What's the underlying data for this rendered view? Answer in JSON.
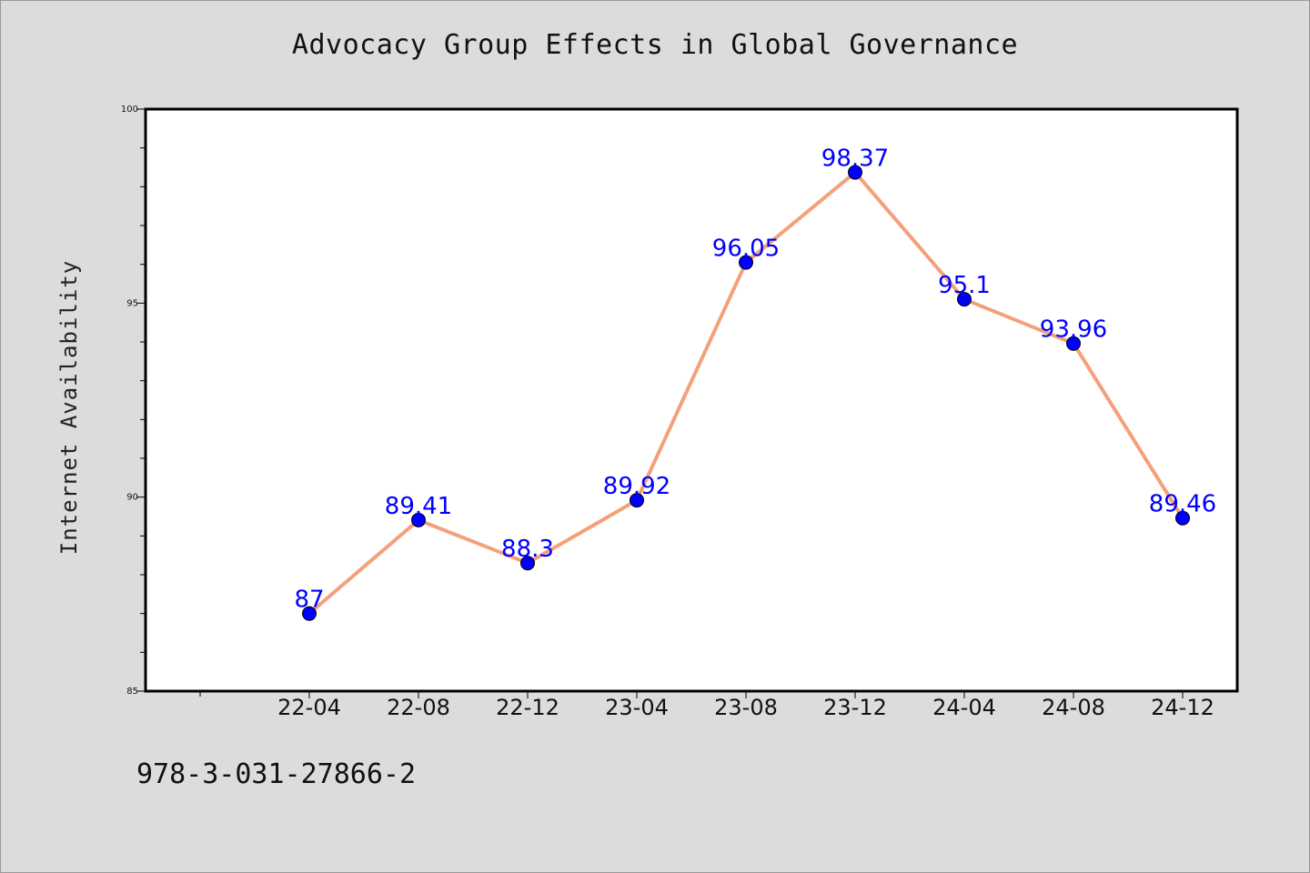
{
  "chart_data": {
    "type": "line",
    "title": "Advocacy Group Effects in Global Governance",
    "xlabel": "",
    "ylabel": "Internet Availability",
    "categories": [
      "22-04",
      "22-08",
      "22-12",
      "23-04",
      "23-08",
      "23-12",
      "24-04",
      "24-08",
      "24-12"
    ],
    "series": [
      {
        "values": [
          87,
          89.41,
          88.3,
          89.92,
          96.05,
          98.37,
          95.1,
          93.96,
          89.46
        ],
        "labels": [
          "87",
          "89.41",
          "88.3",
          "89.92",
          "96.05",
          "98.37",
          "95.1",
          "93.96",
          "89.46"
        ]
      }
    ],
    "ylim": [
      85,
      100
    ],
    "yticks": [
      "85",
      "90",
      "95",
      "100"
    ],
    "grid": false,
    "legend": "none",
    "colors": {
      "line": "#f4a07a",
      "marker": "#0000ff",
      "data_label": "#0000ff",
      "background": "#dcdcdc",
      "plot_background": "#ffffff"
    }
  },
  "footer": {
    "code": "978-3-031-27866-2"
  }
}
